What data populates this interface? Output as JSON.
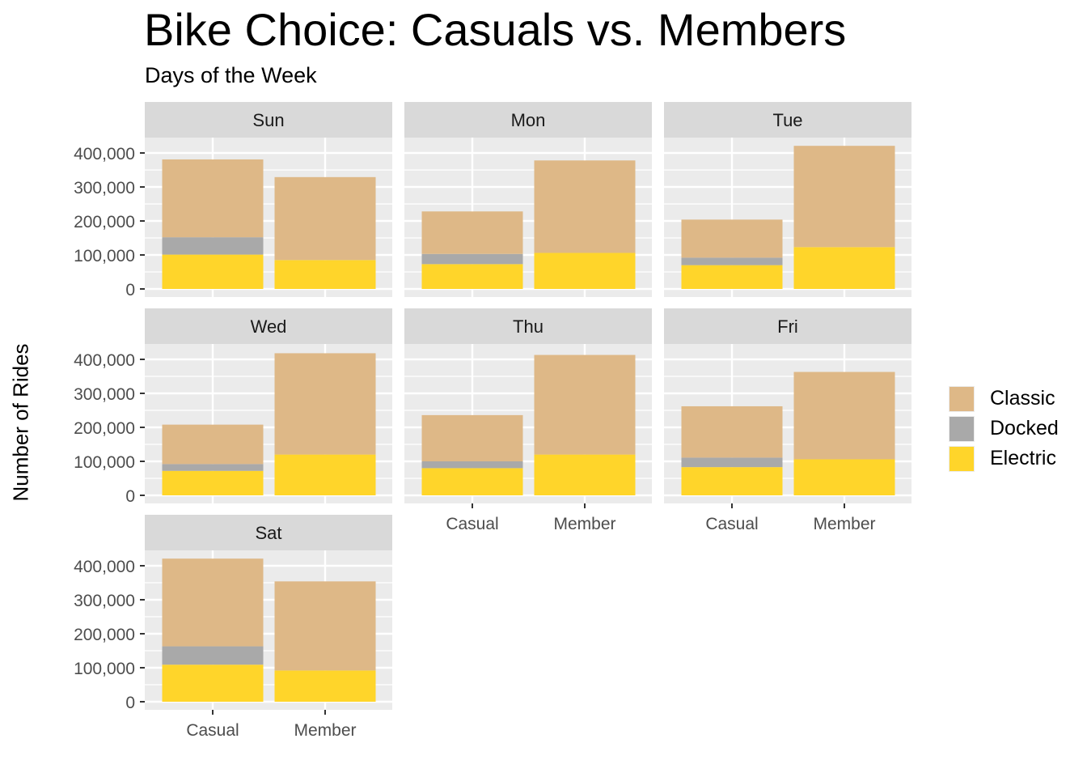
{
  "chart_data": {
    "type": "bar",
    "stacked": true,
    "faceted": true,
    "title": "Bike Choice: Casuals vs. Members",
    "subtitle": "Days of the Week",
    "xlabel": "",
    "ylabel": "Number of Rides",
    "ylim": [
      0,
      420000
    ],
    "yticks": [
      0,
      100000,
      200000,
      300000,
      400000
    ],
    "ytick_labels": [
      "0",
      "100,000",
      "200,000",
      "300,000",
      "400,000"
    ],
    "categories": [
      "Casual",
      "Member"
    ],
    "legend": {
      "position": "right",
      "entries": [
        "Classic",
        "Docked",
        "Electric"
      ]
    },
    "colors": {
      "Classic": "#DEB887",
      "Docked": "#A9A9A9",
      "Electric": "#FFD52A",
      "panel_bg": "#EBEBEB",
      "strip_bg": "#D9D9D9",
      "grid": "#FFFFFF"
    },
    "stack_order_bottom_to_top": [
      "Electric",
      "Docked",
      "Classic"
    ],
    "facets": [
      {
        "label": "Sun",
        "series": [
          {
            "name": "Electric",
            "values": [
              101000,
              85000
            ]
          },
          {
            "name": "Docked",
            "values": [
              51000,
              0
            ]
          },
          {
            "name": "Classic",
            "values": [
              229000,
              244000
            ]
          }
        ]
      },
      {
        "label": "Mon",
        "series": [
          {
            "name": "Electric",
            "values": [
              73000,
              106000
            ]
          },
          {
            "name": "Docked",
            "values": [
              30000,
              0
            ]
          },
          {
            "name": "Classic",
            "values": [
              125000,
              272000
            ]
          }
        ]
      },
      {
        "label": "Tue",
        "series": [
          {
            "name": "Electric",
            "values": [
              70000,
              123000
            ]
          },
          {
            "name": "Docked",
            "values": [
              22000,
              0
            ]
          },
          {
            "name": "Classic",
            "values": [
              112000,
              298000
            ]
          }
        ]
      },
      {
        "label": "Wed",
        "series": [
          {
            "name": "Electric",
            "values": [
              72000,
              120000
            ]
          },
          {
            "name": "Docked",
            "values": [
              20000,
              0
            ]
          },
          {
            "name": "Classic",
            "values": [
              116000,
              298000
            ]
          }
        ]
      },
      {
        "label": "Thu",
        "series": [
          {
            "name": "Electric",
            "values": [
              80000,
              120000
            ]
          },
          {
            "name": "Docked",
            "values": [
              20000,
              0
            ]
          },
          {
            "name": "Classic",
            "values": [
              136000,
              293000
            ]
          }
        ]
      },
      {
        "label": "Fri",
        "series": [
          {
            "name": "Electric",
            "values": [
              83000,
              106000
            ]
          },
          {
            "name": "Docked",
            "values": [
              28000,
              0
            ]
          },
          {
            "name": "Classic",
            "values": [
              151000,
              257000
            ]
          }
        ]
      },
      {
        "label": "Sat",
        "series": [
          {
            "name": "Electric",
            "values": [
              109000,
              92000
            ]
          },
          {
            "name": "Docked",
            "values": [
              54000,
              0
            ]
          },
          {
            "name": "Classic",
            "values": [
              258000,
              262000
            ]
          }
        ]
      }
    ]
  }
}
